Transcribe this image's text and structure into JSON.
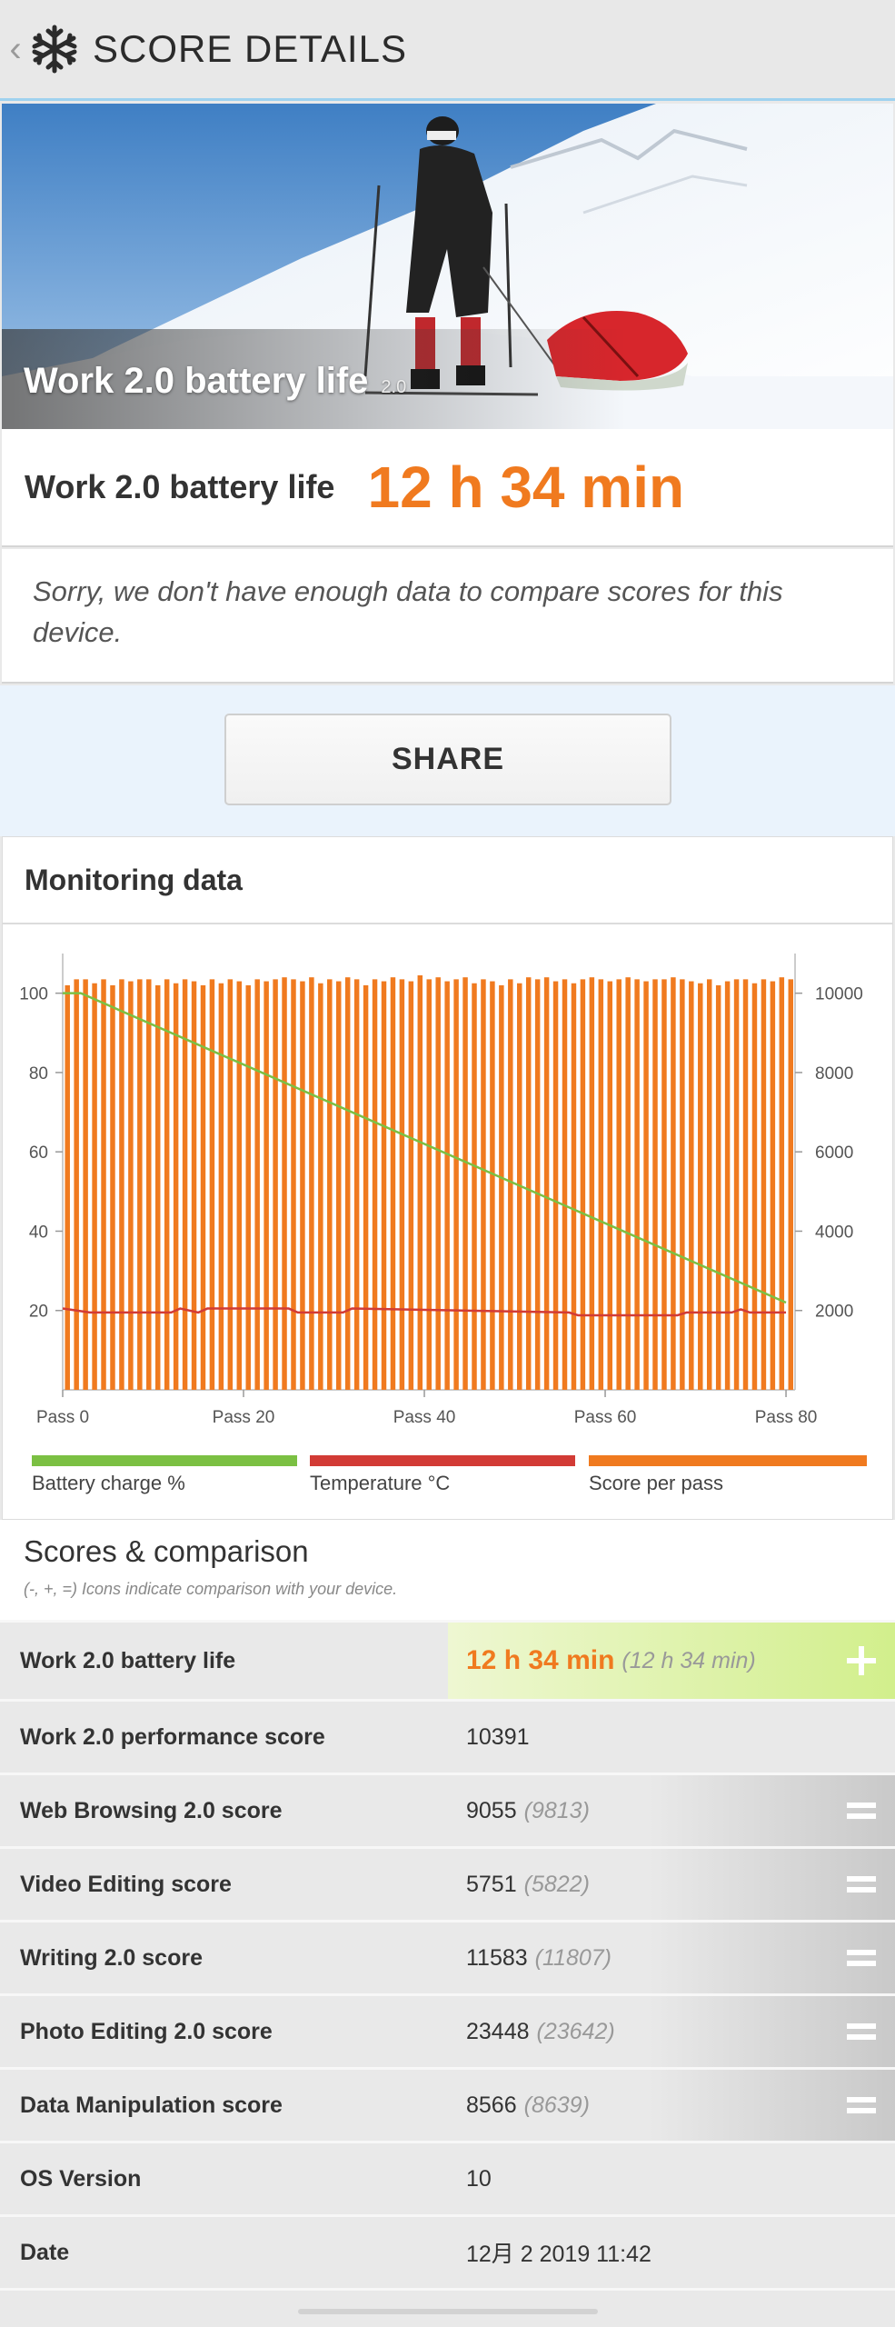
{
  "header": {
    "title": "SCORE DETAILS",
    "back_icon": "chevron-left-icon",
    "logo_icon": "snowflake-icon"
  },
  "hero": {
    "title": "Work 2.0 battery life",
    "version": "2.0"
  },
  "score": {
    "label": "Work 2.0 battery life",
    "value": "12 h 34 min"
  },
  "notice": "Sorry, we don't have enough data to compare scores for this device.",
  "share_label": "SHARE",
  "monitoring": {
    "title": "Monitoring data",
    "legend": [
      {
        "label": "Battery charge %",
        "color": "#7bc043"
      },
      {
        "label": "Temperature °C",
        "color": "#d23b35"
      },
      {
        "label": "Score per pass",
        "color": "#f07a1f"
      }
    ]
  },
  "chart_data": {
    "type": "bar",
    "x": {
      "ticks": [
        "Pass 0",
        "Pass 20",
        "Pass 40",
        "Pass 60",
        "Pass 80"
      ],
      "range": [
        0,
        81
      ]
    },
    "y_left": {
      "ticks": [
        20,
        40,
        60,
        80,
        100
      ],
      "range": [
        0,
        110
      ]
    },
    "y_right": {
      "ticks": [
        2000,
        4000,
        6000,
        8000,
        10000
      ],
      "range": [
        0,
        11000
      ]
    },
    "series": [
      {
        "name": "Score per pass",
        "color": "#f07a1f",
        "values": [
          10200,
          10350,
          10350,
          10250,
          10350,
          10200,
          10350,
          10300,
          10350,
          10350,
          10200,
          10350,
          10250,
          10350,
          10300,
          10200,
          10350,
          10250,
          10350,
          10300,
          10200,
          10350,
          10300,
          10350,
          10400,
          10350,
          10300,
          10400,
          10250,
          10350,
          10300,
          10400,
          10350,
          10200,
          10350,
          10300,
          10400,
          10350,
          10300,
          10450,
          10350,
          10400,
          10300,
          10350,
          10400,
          10250,
          10350,
          10300,
          10200,
          10350,
          10250,
          10400,
          10350,
          10400,
          10300,
          10350,
          10250,
          10350,
          10400,
          10350,
          10300,
          10350,
          10400,
          10350,
          10300,
          10350,
          10350,
          10400,
          10350,
          10300,
          10250,
          10350,
          10200,
          10300,
          10350,
          10350,
          10250,
          10350,
          10300,
          10400,
          10350
        ]
      },
      {
        "name": "Battery charge %",
        "color": "#7bc043",
        "x": [
          0,
          2,
          80
        ],
        "values": [
          100,
          100,
          22
        ]
      },
      {
        "name": "Temperature °C",
        "color": "#d23b35",
        "x": [
          0,
          3,
          12,
          13,
          15,
          16,
          25,
          26,
          31,
          32,
          56,
          57,
          68,
          69,
          74,
          75,
          76,
          80
        ],
        "values": [
          20.5,
          19.5,
          19.5,
          20.5,
          19.5,
          20.5,
          20.5,
          19.5,
          19.5,
          20.5,
          19.5,
          18.8,
          18.8,
          19.5,
          19.5,
          20.3,
          19.5,
          19.5
        ]
      }
    ]
  },
  "scores_section": {
    "title": "Scores & comparison",
    "hint": "(-, +, =) Icons indicate comparison with your device."
  },
  "rows": [
    {
      "name": "Work 2.0 battery life",
      "value": "12 h 34 min",
      "compare": "(12 h 34 min)",
      "sign": "plus"
    },
    {
      "name": "Work 2.0 performance score",
      "value": "10391",
      "compare": ""
    },
    {
      "name": "Web Browsing 2.0 score",
      "value": "9055",
      "compare": "(9813)",
      "sign": "equal"
    },
    {
      "name": "Video Editing score",
      "value": "5751",
      "compare": "(5822)",
      "sign": "equal"
    },
    {
      "name": "Writing 2.0 score",
      "value": "11583",
      "compare": "(11807)",
      "sign": "equal"
    },
    {
      "name": "Photo Editing 2.0 score",
      "value": "23448",
      "compare": "(23642)",
      "sign": "equal"
    },
    {
      "name": "Data Manipulation score",
      "value": "8566",
      "compare": "(8639)",
      "sign": "equal"
    },
    {
      "name": "OS Version",
      "value": "10",
      "compare": ""
    },
    {
      "name": "Date",
      "value": "12月 2 2019 11:42",
      "compare": ""
    }
  ]
}
